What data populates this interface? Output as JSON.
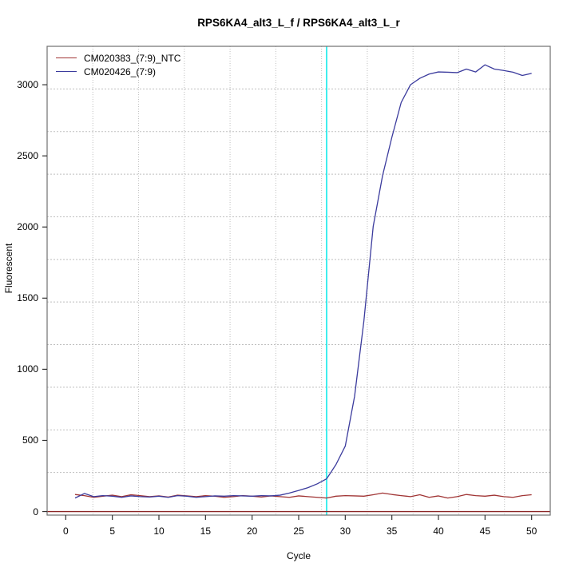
{
  "chart_data": {
    "type": "line",
    "title": "RPS6KA4_alt3_L_f / RPS6KA4_alt3_L_r",
    "xlabel": "Cycle",
    "ylabel": "Fluorescent",
    "x_ticks": [
      0,
      5,
      10,
      15,
      20,
      25,
      30,
      35,
      40,
      45,
      50
    ],
    "y_ticks": [
      0,
      500,
      1000,
      1500,
      2000,
      2500,
      3000
    ],
    "xlim": [
      -2,
      52
    ],
    "ylim": [
      -25,
      3270
    ],
    "grid": {
      "divisions": 11,
      "color": "#BFBFBF",
      "style": "dotted"
    },
    "x": [
      1,
      2,
      3,
      4,
      5,
      6,
      7,
      8,
      9,
      10,
      11,
      12,
      13,
      14,
      15,
      16,
      17,
      18,
      19,
      20,
      21,
      22,
      23,
      24,
      25,
      26,
      27,
      28,
      29,
      30,
      31,
      32,
      33,
      34,
      35,
      36,
      37,
      38,
      39,
      40,
      41,
      42,
      43,
      44,
      45,
      46,
      47,
      48,
      49,
      50
    ],
    "series": [
      {
        "name": "CM020383_(7:9)_NTC",
        "color": "#A03434",
        "values": [
          120,
          112,
          100,
          108,
          115,
          105,
          118,
          112,
          105,
          110,
          102,
          115,
          110,
          105,
          112,
          108,
          100,
          105,
          112,
          108,
          102,
          110,
          105,
          100,
          110,
          105,
          100,
          95,
          108,
          112,
          110,
          108,
          118,
          130,
          120,
          112,
          105,
          118,
          100,
          110,
          95,
          105,
          120,
          112,
          108,
          115,
          105,
          100,
          112,
          118
        ]
      },
      {
        "name": "CM020426_(7:9)",
        "color": "#3B3B9D",
        "values": [
          95,
          127,
          105,
          112,
          108,
          100,
          110,
          105,
          102,
          108,
          100,
          112,
          108,
          100,
          105,
          110,
          108,
          112,
          110,
          108,
          112,
          110,
          115,
          130,
          148,
          168,
          195,
          230,
          330,
          460,
          810,
          1340,
          2005,
          2360,
          2630,
          2875,
          3000,
          3045,
          3075,
          3090,
          3088,
          3085,
          3110,
          3090,
          3140,
          3110,
          3100,
          3088,
          3065,
          3080
        ]
      }
    ],
    "threshold_line": {
      "y": 0,
      "color": "#8B2626"
    },
    "ct_line": {
      "x": 28,
      "color": "#00E8E8"
    },
    "legend_position": "top-left",
    "frame_color": "#707070",
    "tick_color": "#333333"
  }
}
